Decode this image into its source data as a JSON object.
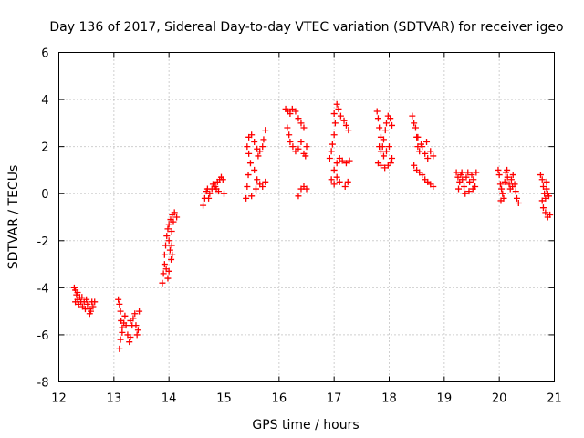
{
  "chart_data": {
    "type": "scatter",
    "title": "Day 136 of 2017, Sidereal Day-to-day VTEC variation (SDTVAR) for receiver igeo",
    "xlabel": "GPS time / hours",
    "ylabel": "SDTVAR / TECUs",
    "xlim": [
      12,
      21
    ],
    "ylim": [
      -8,
      6
    ],
    "xticks": [
      12,
      13,
      14,
      15,
      16,
      17,
      18,
      19,
      20,
      21
    ],
    "yticks": [
      -8,
      -6,
      -4,
      -2,
      0,
      2,
      4,
      6
    ],
    "grid": true,
    "marker": "+",
    "marker_color": "#ff0000",
    "series": [
      {
        "name": "SDTVAR",
        "points": [
          [
            12.28,
            -4.0
          ],
          [
            12.3,
            -4.1
          ],
          [
            12.32,
            -4.3
          ],
          [
            12.34,
            -4.5
          ],
          [
            12.36,
            -4.7
          ],
          [
            12.4,
            -4.6
          ],
          [
            12.43,
            -4.8
          ],
          [
            12.46,
            -4.6
          ],
          [
            12.48,
            -4.9
          ],
          [
            12.52,
            -4.7
          ],
          [
            12.55,
            -4.9
          ],
          [
            12.58,
            -5.0
          ],
          [
            12.62,
            -4.8
          ],
          [
            12.65,
            -4.6
          ],
          [
            12.3,
            -4.6
          ],
          [
            12.34,
            -4.2
          ],
          [
            12.38,
            -4.4
          ],
          [
            12.42,
            -4.4
          ],
          [
            12.5,
            -4.5
          ],
          [
            12.56,
            -5.1
          ],
          [
            12.6,
            -4.6
          ],
          [
            13.08,
            -4.5
          ],
          [
            13.1,
            -4.7
          ],
          [
            13.12,
            -5.0
          ],
          [
            13.13,
            -5.4
          ],
          [
            13.15,
            -5.7
          ],
          [
            13.12,
            -6.2
          ],
          [
            13.1,
            -6.6
          ],
          [
            13.15,
            -5.9
          ],
          [
            13.18,
            -5.5
          ],
          [
            13.2,
            -5.2
          ],
          [
            13.22,
            -5.6
          ],
          [
            13.25,
            -6.0
          ],
          [
            13.28,
            -6.3
          ],
          [
            13.3,
            -6.1
          ],
          [
            13.33,
            -5.6
          ],
          [
            13.35,
            -5.3
          ],
          [
            13.38,
            -5.1
          ],
          [
            13.4,
            -5.6
          ],
          [
            13.42,
            -6.0
          ],
          [
            13.44,
            -5.8
          ],
          [
            13.46,
            -5.0
          ],
          [
            13.3,
            -5.4
          ],
          [
            13.88,
            -3.8
          ],
          [
            13.9,
            -3.4
          ],
          [
            13.92,
            -3.0
          ],
          [
            13.92,
            -2.6
          ],
          [
            13.94,
            -2.2
          ],
          [
            13.96,
            -1.8
          ],
          [
            13.98,
            -1.5
          ],
          [
            14.0,
            -1.3
          ],
          [
            14.03,
            -1.1
          ],
          [
            14.06,
            -0.9
          ],
          [
            14.1,
            -0.8
          ],
          [
            14.14,
            -1.0
          ],
          [
            14.0,
            -2.0
          ],
          [
            14.02,
            -2.4
          ],
          [
            14.05,
            -2.2
          ],
          [
            13.95,
            -3.2
          ],
          [
            13.98,
            -3.6
          ],
          [
            14.0,
            -3.3
          ],
          [
            14.05,
            -1.6
          ],
          [
            14.08,
            -1.2
          ],
          [
            14.04,
            -2.8
          ],
          [
            14.06,
            -2.6
          ],
          [
            14.62,
            -0.5
          ],
          [
            14.65,
            -0.2
          ],
          [
            14.68,
            0.1
          ],
          [
            14.7,
            0.2
          ],
          [
            14.74,
            0.0
          ],
          [
            14.78,
            0.2
          ],
          [
            14.8,
            0.4
          ],
          [
            14.84,
            0.3
          ],
          [
            14.88,
            0.5
          ],
          [
            14.92,
            0.6
          ],
          [
            14.95,
            0.7
          ],
          [
            14.98,
            0.6
          ],
          [
            14.72,
            -0.2
          ],
          [
            14.9,
            0.1
          ],
          [
            15.0,
            0.0
          ],
          [
            14.86,
            0.2
          ],
          [
            15.4,
            -0.2
          ],
          [
            15.42,
            0.3
          ],
          [
            15.44,
            0.8
          ],
          [
            15.48,
            1.3
          ],
          [
            15.45,
            1.7
          ],
          [
            15.42,
            2.0
          ],
          [
            15.45,
            2.4
          ],
          [
            15.5,
            2.5
          ],
          [
            15.55,
            2.2
          ],
          [
            15.6,
            1.9
          ],
          [
            15.62,
            1.6
          ],
          [
            15.65,
            1.8
          ],
          [
            15.7,
            2.0
          ],
          [
            15.72,
            2.3
          ],
          [
            15.75,
            2.7
          ],
          [
            15.55,
            1.0
          ],
          [
            15.6,
            0.6
          ],
          [
            15.65,
            0.4
          ],
          [
            15.7,
            0.3
          ],
          [
            15.75,
            0.5
          ],
          [
            15.5,
            -0.1
          ],
          [
            15.58,
            0.2
          ],
          [
            16.12,
            3.6
          ],
          [
            16.16,
            3.5
          ],
          [
            16.2,
            3.4
          ],
          [
            16.24,
            3.6
          ],
          [
            16.3,
            3.5
          ],
          [
            16.35,
            3.2
          ],
          [
            16.4,
            3.0
          ],
          [
            16.45,
            2.8
          ],
          [
            16.15,
            2.8
          ],
          [
            16.18,
            2.5
          ],
          [
            16.2,
            2.2
          ],
          [
            16.25,
            2.0
          ],
          [
            16.3,
            1.8
          ],
          [
            16.35,
            1.9
          ],
          [
            16.4,
            2.2
          ],
          [
            16.45,
            1.7
          ],
          [
            16.48,
            1.6
          ],
          [
            16.5,
            2.0
          ],
          [
            16.4,
            0.2
          ],
          [
            16.45,
            0.3
          ],
          [
            16.5,
            0.2
          ],
          [
            16.35,
            -0.1
          ],
          [
            16.92,
            1.5
          ],
          [
            16.95,
            1.8
          ],
          [
            16.97,
            2.1
          ],
          [
            17.0,
            2.5
          ],
          [
            17.02,
            3.0
          ],
          [
            17.0,
            3.4
          ],
          [
            17.05,
            3.8
          ],
          [
            17.08,
            3.6
          ],
          [
            17.12,
            3.3
          ],
          [
            17.18,
            3.1
          ],
          [
            17.22,
            2.9
          ],
          [
            17.26,
            2.7
          ],
          [
            17.0,
            1.0
          ],
          [
            17.05,
            1.3
          ],
          [
            17.1,
            1.5
          ],
          [
            17.15,
            1.4
          ],
          [
            17.22,
            1.3
          ],
          [
            17.28,
            1.4
          ],
          [
            16.95,
            0.6
          ],
          [
            17.0,
            0.4
          ],
          [
            17.05,
            0.7
          ],
          [
            17.1,
            0.5
          ],
          [
            17.2,
            0.3
          ],
          [
            17.25,
            0.5
          ],
          [
            17.78,
            3.5
          ],
          [
            17.8,
            3.2
          ],
          [
            17.82,
            2.8
          ],
          [
            17.85,
            2.4
          ],
          [
            17.88,
            2.0
          ],
          [
            17.9,
            2.3
          ],
          [
            17.93,
            2.7
          ],
          [
            17.95,
            3.0
          ],
          [
            17.98,
            3.3
          ],
          [
            18.02,
            3.2
          ],
          [
            18.05,
            2.9
          ],
          [
            17.82,
            2.0
          ],
          [
            17.85,
            1.8
          ],
          [
            17.9,
            1.6
          ],
          [
            17.95,
            1.8
          ],
          [
            18.0,
            2.0
          ],
          [
            18.05,
            1.5
          ],
          [
            17.8,
            1.3
          ],
          [
            17.85,
            1.2
          ],
          [
            17.92,
            1.1
          ],
          [
            17.98,
            1.2
          ],
          [
            18.03,
            1.3
          ],
          [
            18.42,
            3.3
          ],
          [
            18.45,
            3.0
          ],
          [
            18.48,
            2.8
          ],
          [
            18.5,
            2.4
          ],
          [
            18.52,
            2.0
          ],
          [
            18.55,
            1.8
          ],
          [
            18.6,
            2.0
          ],
          [
            18.65,
            1.7
          ],
          [
            18.7,
            1.5
          ],
          [
            18.75,
            1.8
          ],
          [
            18.8,
            1.6
          ],
          [
            18.45,
            1.2
          ],
          [
            18.5,
            1.0
          ],
          [
            18.55,
            0.9
          ],
          [
            18.6,
            0.8
          ],
          [
            18.65,
            0.6
          ],
          [
            18.7,
            0.5
          ],
          [
            18.75,
            0.4
          ],
          [
            18.8,
            0.3
          ],
          [
            18.52,
            2.4
          ],
          [
            18.58,
            2.1
          ],
          [
            18.68,
            2.2
          ],
          [
            19.22,
            0.9
          ],
          [
            19.25,
            0.7
          ],
          [
            19.28,
            0.5
          ],
          [
            19.3,
            0.8
          ],
          [
            19.33,
            0.6
          ],
          [
            19.36,
            0.3
          ],
          [
            19.38,
            0.0
          ],
          [
            19.4,
            0.7
          ],
          [
            19.43,
            0.9
          ],
          [
            19.46,
            0.5
          ],
          [
            19.5,
            0.8
          ],
          [
            19.53,
            0.6
          ],
          [
            19.56,
            0.3
          ],
          [
            19.58,
            0.9
          ],
          [
            19.26,
            0.2
          ],
          [
            19.32,
            0.9
          ],
          [
            19.45,
            0.1
          ],
          [
            19.52,
            0.2
          ],
          [
            19.98,
            1.0
          ],
          [
            20.0,
            0.8
          ],
          [
            20.02,
            0.4
          ],
          [
            20.04,
            0.2
          ],
          [
            20.06,
            0.0
          ],
          [
            20.08,
            -0.2
          ],
          [
            20.1,
            0.5
          ],
          [
            20.12,
            0.9
          ],
          [
            20.15,
            0.7
          ],
          [
            20.18,
            0.4
          ],
          [
            20.2,
            0.2
          ],
          [
            20.22,
            0.6
          ],
          [
            20.25,
            0.8
          ],
          [
            20.28,
            0.4
          ],
          [
            20.3,
            0.1
          ],
          [
            20.32,
            -0.2
          ],
          [
            20.35,
            -0.4
          ],
          [
            20.03,
            -0.3
          ],
          [
            20.14,
            1.0
          ],
          [
            20.24,
            0.3
          ],
          [
            20.75,
            0.8
          ],
          [
            20.78,
            0.6
          ],
          [
            20.8,
            0.3
          ],
          [
            20.82,
            0.0
          ],
          [
            20.84,
            -0.2
          ],
          [
            20.86,
            0.2
          ],
          [
            20.88,
            0.0
          ],
          [
            20.9,
            -0.1
          ],
          [
            20.8,
            -0.6
          ],
          [
            20.84,
            -0.8
          ],
          [
            20.88,
            -1.0
          ],
          [
            20.92,
            -0.9
          ],
          [
            20.78,
            -0.3
          ],
          [
            20.86,
            0.5
          ]
        ]
      }
    ]
  }
}
